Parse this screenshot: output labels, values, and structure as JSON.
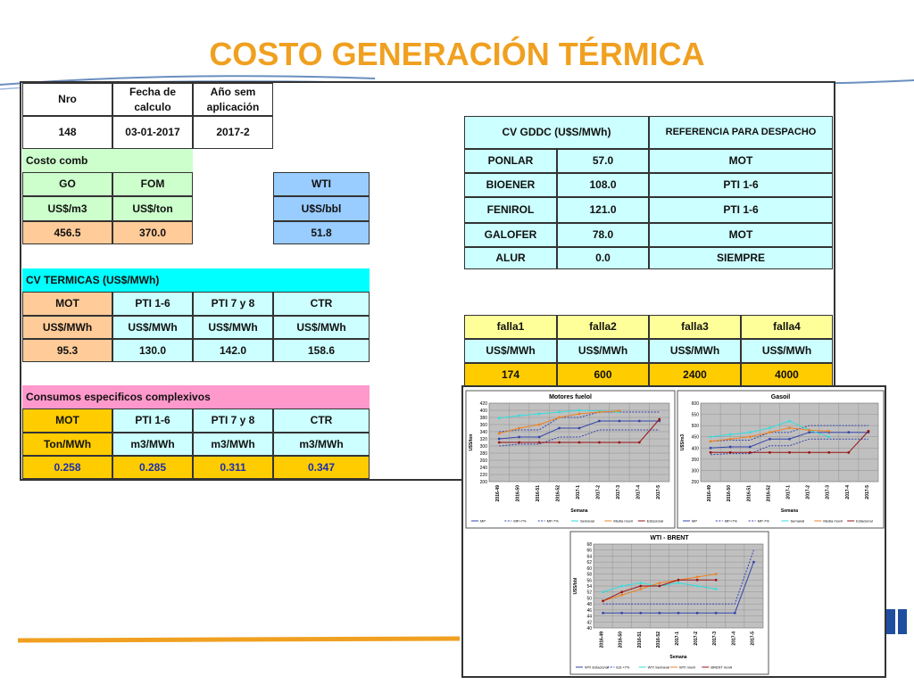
{
  "title": "COSTO GENERACIÓN TÉRMICA",
  "header": {
    "cols": [
      "Nro",
      "Fecha de calculo",
      "Año sem aplicación"
    ],
    "values": [
      "148",
      "03-01-2017",
      "2017-2"
    ]
  },
  "costo_comb": {
    "title": "Costo comb",
    "cols": [
      "GO",
      "FOM"
    ],
    "units": [
      "US$/m3",
      "US$/ton"
    ],
    "values": [
      "456.5",
      "370.0"
    ]
  },
  "wti": {
    "col": "WTI",
    "unit": "U$S/bbl",
    "value": "51.8"
  },
  "cv_gddc": {
    "header": "CV GDDC (U$S/MWh)",
    "ref_header": "REFERENCIA PARA DESPACHO",
    "rows": [
      [
        "PONLAR",
        "57.0",
        "MOT"
      ],
      [
        "BIOENER",
        "108.0",
        "PTI 1-6"
      ],
      [
        "FENIROL",
        "121.0",
        "PTI 1-6"
      ],
      [
        "GALOFER",
        "78.0",
        "MOT"
      ],
      [
        "ALUR",
        "0.0",
        "SIEMPRE"
      ]
    ]
  },
  "cv_termicas": {
    "title": "CV TERMICAS (US$/MWh)",
    "cols": [
      "MOT",
      "PTI 1-6",
      "PTI 7 y 8",
      "CTR"
    ],
    "units": [
      "US$/MWh",
      "US$/MWh",
      "US$/MWh",
      "US$/MWh"
    ],
    "values": [
      "95.3",
      "130.0",
      "142.0",
      "158.6"
    ]
  },
  "falla": {
    "cols": [
      "falla1",
      "falla2",
      "falla3",
      "falla4"
    ],
    "units": [
      "US$/MWh",
      "US$/MWh",
      "US$/MWh",
      "US$/MWh"
    ],
    "values": [
      "174",
      "600",
      "2400",
      "4000"
    ]
  },
  "consumos": {
    "title": "Consumos especificos complexivos",
    "cols": [
      "MOT",
      "PTI 1-6",
      "PTI 7 y 8",
      "CTR"
    ],
    "units": [
      "Ton/MWh",
      "m3/MWh",
      "m3/MWh",
      "m3/MWh"
    ],
    "values": [
      "0.258",
      "0.285",
      "0.311",
      "0.347"
    ]
  },
  "chart_data": [
    {
      "type": "line",
      "title": "Motores fuelol",
      "x_label": "Semana",
      "y_label": "U$S/ton",
      "categories": [
        "2016-49",
        "2016-50",
        "2016-51",
        "2016-52",
        "2017-1",
        "2017-2",
        "2017-3",
        "2017-4",
        "2017-5"
      ],
      "ylim": [
        200,
        420
      ],
      "yticks": [
        200,
        220,
        240,
        260,
        280,
        300,
        320,
        340,
        360,
        380,
        400,
        420
      ],
      "series": [
        {
          "name": "MP",
          "color": "#3344aa",
          "dash": false,
          "values": [
            320,
            325,
            325,
            350,
            350,
            370,
            370,
            370,
            370
          ]
        },
        {
          "name": "MP+7%",
          "color": "#3344aa",
          "dash": true,
          "values": [
            340,
            345,
            345,
            380,
            380,
            395,
            395,
            395,
            395
          ]
        },
        {
          "name": "MP-7%",
          "color": "#3344aa",
          "dash": true,
          "values": [
            300,
            305,
            305,
            325,
            325,
            345,
            345,
            345,
            345
          ]
        },
        {
          "name": "Semanal",
          "color": "#33dddd",
          "dash": false,
          "values": [
            378,
            385,
            390,
            395,
            400,
            398,
            395,
            null,
            null
          ]
        },
        {
          "name": "Media movil",
          "color": "#f08020",
          "dash": false,
          "values": [
            335,
            350,
            360,
            380,
            390,
            395,
            398,
            null,
            null
          ]
        },
        {
          "name": "Estacional",
          "color": "#991111",
          "dash": false,
          "values": [
            310,
            310,
            310,
            310,
            310,
            310,
            310,
            310,
            375
          ]
        }
      ]
    },
    {
      "type": "line",
      "title": "Gasoil",
      "x_label": "Semana",
      "y_label": "U$S/m3",
      "categories": [
        "2016-49",
        "2016-50",
        "2016-51",
        "2016-52",
        "2017-1",
        "2017-2",
        "2017-3",
        "2017-4",
        "2017-5"
      ],
      "ylim": [
        250,
        600
      ],
      "yticks": [
        250,
        300,
        350,
        400,
        450,
        500,
        550,
        600
      ],
      "series": [
        {
          "name": "MP",
          "color": "#3344aa",
          "dash": false,
          "values": [
            400,
            405,
            405,
            440,
            440,
            470,
            470,
            470,
            470
          ]
        },
        {
          "name": "MP+7%",
          "color": "#3344aa",
          "dash": true,
          "values": [
            430,
            435,
            435,
            470,
            470,
            500,
            500,
            500,
            500
          ]
        },
        {
          "name": "MP-7%",
          "color": "#3344aa",
          "dash": true,
          "values": [
            370,
            375,
            375,
            410,
            410,
            440,
            440,
            440,
            440
          ]
        },
        {
          "name": "Semanal",
          "color": "#33dddd",
          "dash": false,
          "values": [
            450,
            460,
            470,
            490,
            520,
            480,
            450,
            null,
            null
          ]
        },
        {
          "name": "Media movil",
          "color": "#f08020",
          "dash": false,
          "values": [
            430,
            440,
            450,
            470,
            490,
            480,
            475,
            null,
            null
          ]
        },
        {
          "name": "Estacional",
          "color": "#991111",
          "dash": false,
          "values": [
            380,
            380,
            380,
            380,
            380,
            380,
            380,
            380,
            475
          ]
        }
      ]
    },
    {
      "type": "line",
      "title": "WTI - BRENT",
      "x_label": "Semana",
      "y_label": "U$S/bbl",
      "categories": [
        "2016-49",
        "2016-50",
        "2016-51",
        "2016-52",
        "2017-1",
        "2017-2",
        "2017-3",
        "2017-4",
        "2017-5"
      ],
      "ylim": [
        40,
        68
      ],
      "yticks": [
        40,
        42,
        44,
        46,
        48,
        50,
        52,
        54,
        56,
        58,
        60,
        62,
        64,
        66,
        68
      ],
      "series": [
        {
          "name": "WTI Estacional",
          "color": "#3344aa",
          "dash": false,
          "values": [
            45,
            45,
            45,
            45,
            45,
            45,
            45,
            45,
            62
          ]
        },
        {
          "name": "Est.+7%",
          "color": "#3344aa",
          "dash": true,
          "values": [
            48,
            48,
            48,
            48,
            48,
            48,
            48,
            48,
            66
          ]
        },
        {
          "name": "WTI Semanal",
          "color": "#33dddd",
          "dash": false,
          "values": [
            52,
            54,
            55,
            54,
            55,
            54,
            53,
            null,
            null
          ]
        },
        {
          "name": "WTI movil",
          "color": "#f08020",
          "dash": false,
          "values": [
            49,
            51,
            53,
            55,
            56,
            57,
            58,
            null,
            null
          ]
        },
        {
          "name": "BRENT movil",
          "color": "#991111",
          "dash": false,
          "values": [
            49,
            52,
            54,
            54,
            56,
            56,
            56,
            null,
            null
          ]
        }
      ]
    }
  ]
}
